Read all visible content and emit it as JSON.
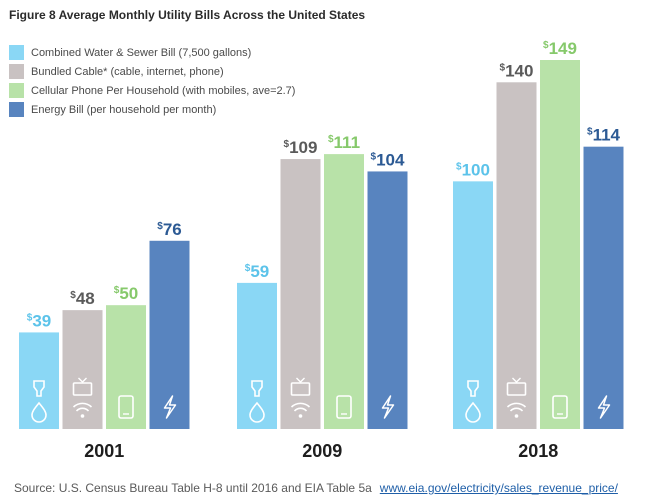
{
  "chart_data": {
    "type": "bar",
    "title": "Figure 8  Average Monthly Utility Bills Across the United States",
    "categories": [
      "2001",
      "2009",
      "2018"
    ],
    "series": [
      {
        "name": "Combined Water & Sewer Bill (7,500 gallons)",
        "color": "#8ad7f5",
        "icon": "water-icon",
        "values": [
          39,
          59,
          100
        ]
      },
      {
        "name": "Bundled Cable* (cable, internet, phone)",
        "color": "#c9c2c2",
        "icon": "tv-wifi-icon",
        "values": [
          48,
          109,
          140
        ]
      },
      {
        "name": "Cellular Phone Per Household (with mobiles, ave=2.7)",
        "color": "#b8e2a8",
        "icon": "phone-icon",
        "values": [
          50,
          111,
          149
        ]
      },
      {
        "name": "Energy Bill (per household per month)",
        "color": "#5884bf",
        "icon": "lightning-icon",
        "values": [
          76,
          104,
          114
        ]
      }
    ],
    "value_prefix": "$",
    "label_colors": [
      "#5cc3ea",
      "#5a5a5a",
      "#86c96b",
      "#2c5a94"
    ],
    "ylim": [
      0,
      149
    ],
    "legend": "top-left"
  },
  "source": {
    "text": "Source: U.S. Census Bureau Table H-8 until 2016 and EIA Table 5a",
    "link": "www.eia.gov/electricity/sales_revenue_price/"
  }
}
